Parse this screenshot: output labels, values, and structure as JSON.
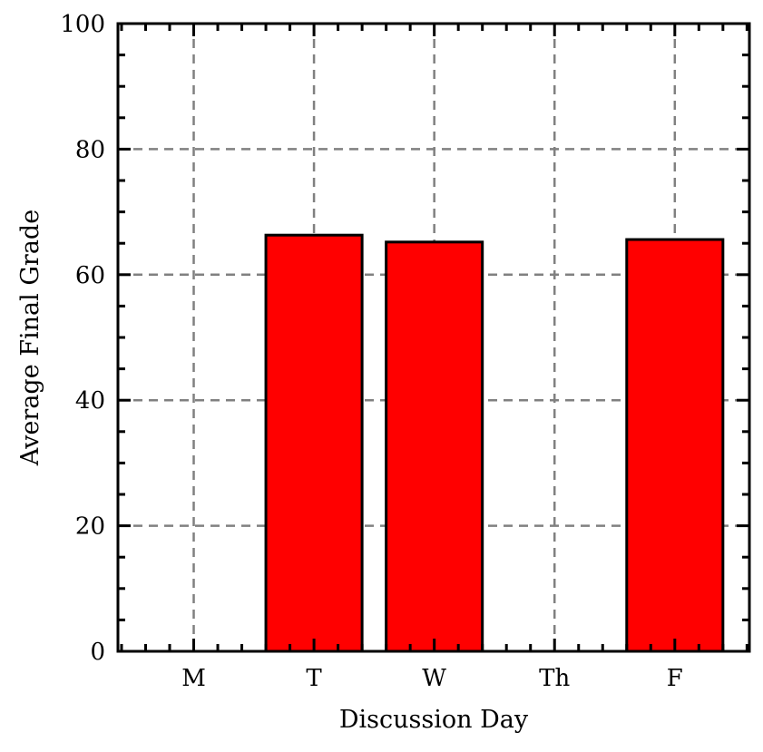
{
  "chart_data": {
    "type": "bar",
    "title": "",
    "xlabel": "Discussion Day",
    "ylabel": "Average Final Grade",
    "categories": [
      "M",
      "T",
      "W",
      "Th",
      "F"
    ],
    "values": [
      0,
      66.3,
      65.2,
      0,
      65.6
    ],
    "ylim": [
      0,
      100
    ],
    "yticks": [
      0,
      20,
      40,
      60,
      80,
      100
    ],
    "ytick_labels": [
      "0",
      "20",
      "40",
      "60",
      "80",
      "100"
    ],
    "grid": true,
    "grid_style": "dashed",
    "bar_color": "#ff0000",
    "edge_color": "#000000",
    "grid_color": "#808080"
  }
}
